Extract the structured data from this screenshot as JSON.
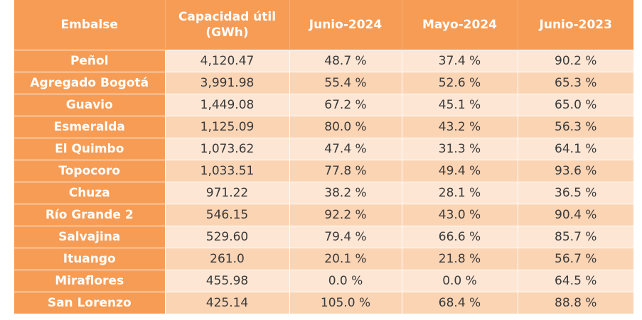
{
  "table": {
    "headers": [
      "Embalse",
      "Capacidad útil (GWh)",
      "Junio-2024",
      "Mayo-2024",
      "Junio-2023"
    ],
    "rows": [
      [
        "Peñol",
        "4,120.47",
        "48.7 %",
        "37.4 %",
        "90.2 %"
      ],
      [
        "Agregado Bogotá",
        "3,991.98",
        "55.4 %",
        "52.6 %",
        "65.3 %"
      ],
      [
        "Guavio",
        "1,449.08",
        "67.2 %",
        "45.1 %",
        "65.0 %"
      ],
      [
        "Esmeralda",
        "1,125.09",
        "80.0 %",
        "43.2 %",
        "56.3 %"
      ],
      [
        "El Quimbo",
        "1,073.62",
        "47.4 %",
        "31.3 %",
        "64.1 %"
      ],
      [
        "Topocoro",
        "1,033.51",
        "77.8 %",
        "49.4 %",
        "93.6 %"
      ],
      [
        "Chuza",
        "971.22",
        "38.2 %",
        "28.1 %",
        "36.5 %"
      ],
      [
        "Río Grande 2",
        "546.15",
        "92.2 %",
        "43.0 %",
        "90.4 %"
      ],
      [
        "Salvajina",
        "529.60",
        "79.4 %",
        "66.6 %",
        "85.7 %"
      ],
      [
        "Ituango",
        "261.0",
        "20.1 %",
        "21.8 %",
        "56.7 %"
      ],
      [
        "Miraflores",
        "455.98",
        "0.0 %",
        "0.0 %",
        "64.5 %"
      ],
      [
        "San Lorenzo",
        "425.14",
        "105.0 %",
        "68.4 %",
        "88.8 %"
      ]
    ]
  },
  "colors": {
    "header_bg": "#f79c55",
    "header_text": "#ffffff",
    "row_light": "#fde6d4",
    "row_dark": "#fbd4b4",
    "cell_text": "#3a3a3a"
  }
}
